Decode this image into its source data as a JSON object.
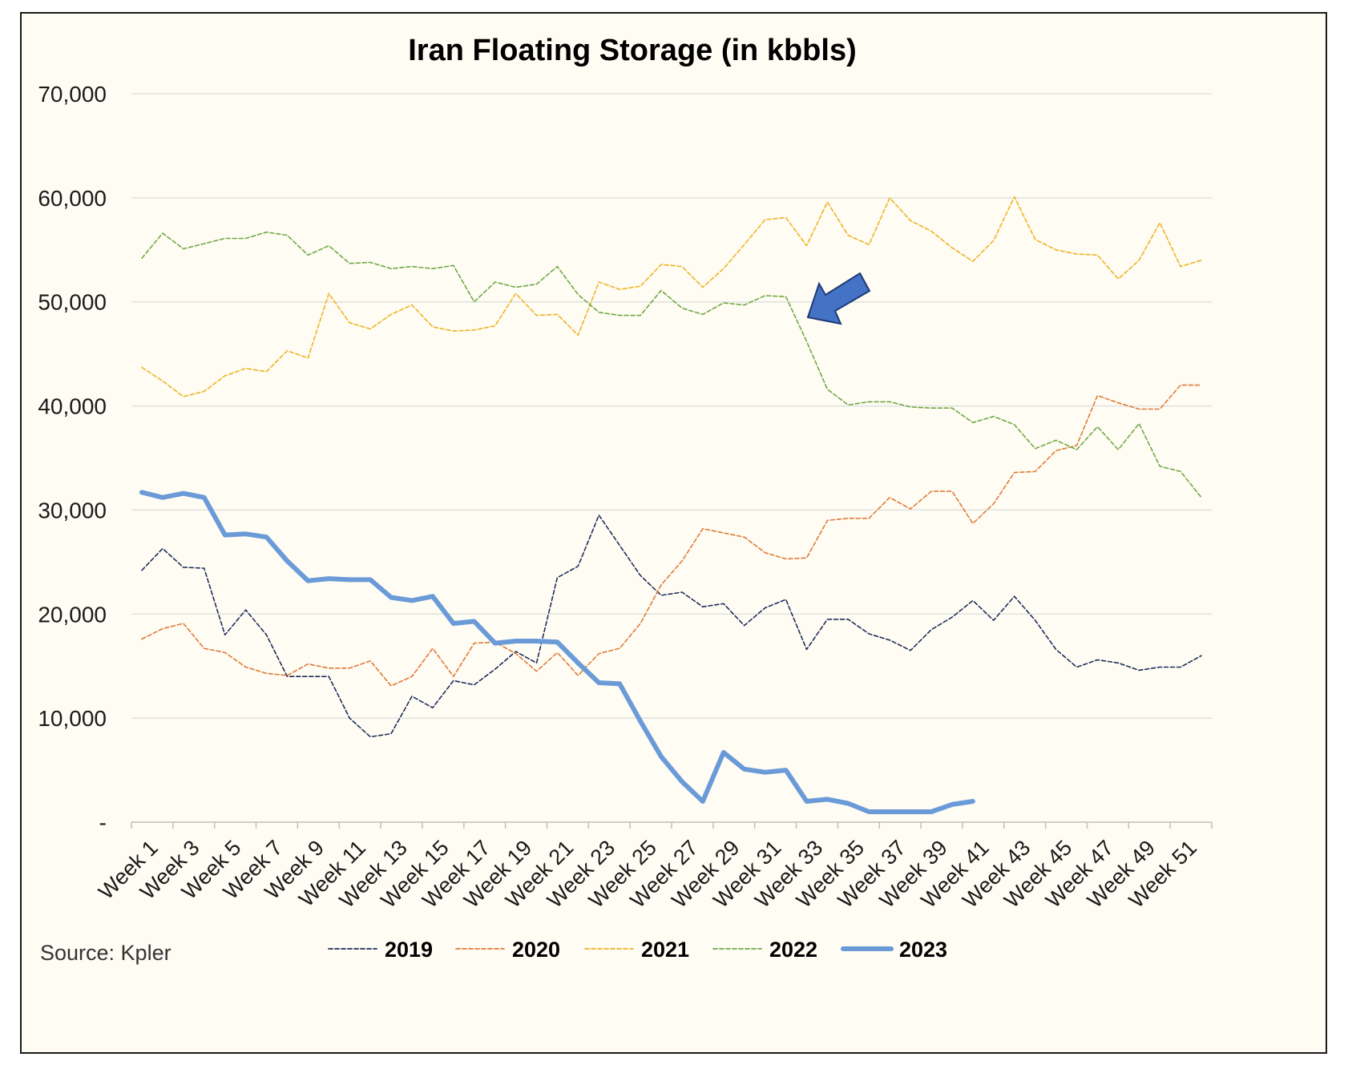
{
  "chart_data": {
    "type": "line",
    "title": "Iran Floating Storage (in kbbls)",
    "source": "Source: Kpler",
    "xlabel": "",
    "ylabel": "",
    "ylim": [
      0,
      70000
    ],
    "yticks": [
      {
        "value": 0,
        "label": "-"
      },
      {
        "value": 10000,
        "label": "10,000"
      },
      {
        "value": 20000,
        "label": "20,000"
      },
      {
        "value": 30000,
        "label": "30,000"
      },
      {
        "value": 40000,
        "label": "40,000"
      },
      {
        "value": 50000,
        "label": "50,000"
      },
      {
        "value": 60000,
        "label": "60,000"
      },
      {
        "value": 70000,
        "label": "70,000"
      }
    ],
    "x_tick_labels": [
      "Week 1",
      "Week 3",
      "Week 5",
      "Week 7",
      "Week 9",
      "Week 11",
      "Week 13",
      "Week 15",
      "Week 17",
      "Week 19",
      "Week 21",
      "Week 23",
      "Week 25",
      "Week 27",
      "Week 29",
      "Week 31",
      "Week 33",
      "Week 35",
      "Week 37",
      "Week 39",
      "Week 41",
      "Week 43",
      "Week 45",
      "Week 47",
      "Week 49",
      "Week 51"
    ],
    "num_weeks": 52,
    "grid": true,
    "legend_position": "bottom",
    "annotation": {
      "type": "arrow",
      "points_to": "2022 drop at Week 32",
      "color": "#4472c4"
    },
    "series": [
      {
        "name": "2019",
        "color": "#1f2d5c",
        "style": "dashed",
        "width": 1.6,
        "values": [
          24200,
          26300,
          24500,
          24400,
          18000,
          20400,
          18000,
          14000,
          14000,
          14000,
          10000,
          8200,
          8500,
          12100,
          11000,
          13600,
          13200,
          14700,
          16400,
          15300,
          23500,
          24600,
          29500,
          26600,
          23700,
          21800,
          22100,
          20700,
          21000,
          18900,
          20600,
          21400,
          16600,
          19500,
          19500,
          18100,
          17500,
          16500,
          18500,
          19700,
          21300,
          19400,
          21700,
          19400,
          16600,
          14900,
          15600,
          15300,
          14600,
          14900,
          14900,
          16000
        ]
      },
      {
        "name": "2020",
        "color": "#e07b39",
        "style": "dashed",
        "width": 1.6,
        "values": [
          17600,
          18600,
          19100,
          16700,
          16300,
          14900,
          14300,
          14100,
          15200,
          14800,
          14800,
          15500,
          13100,
          14000,
          16700,
          14000,
          17200,
          17300,
          16200,
          14500,
          16300,
          14100,
          16200,
          16700,
          19100,
          22800,
          25100,
          28200,
          27800,
          27400,
          25900,
          25300,
          25400,
          29000,
          29200,
          29200,
          31200,
          30100,
          31800,
          31800,
          28700,
          30600,
          33600,
          33700,
          35700,
          36200,
          41000,
          40300,
          39700,
          39700,
          42000,
          42000
        ]
      },
      {
        "name": "2021",
        "color": "#f0b323",
        "style": "dashed",
        "width": 1.6,
        "values": [
          43700,
          42400,
          40900,
          41400,
          42900,
          43600,
          43300,
          45300,
          44600,
          50800,
          48000,
          47400,
          48800,
          49700,
          47600,
          47200,
          47300,
          47700,
          50800,
          48700,
          48800,
          46800,
          51900,
          51200,
          51500,
          53600,
          53400,
          51400,
          53200,
          55500,
          57900,
          58100,
          55400,
          59600,
          56400,
          55500,
          60000,
          57800,
          56800,
          55200,
          53900,
          55900,
          60100,
          56000,
          55000,
          54600,
          54500,
          52200,
          54000,
          57600,
          53400,
          54000
        ]
      },
      {
        "name": "2022",
        "color": "#70a846",
        "style": "dashed",
        "width": 1.6,
        "values": [
          54200,
          56600,
          55100,
          55600,
          56100,
          56100,
          56700,
          56400,
          54500,
          55400,
          53700,
          53800,
          53200,
          53400,
          53200,
          53500,
          50000,
          51900,
          51400,
          51700,
          53400,
          50700,
          49000,
          48700,
          48700,
          51100,
          49400,
          48800,
          49900,
          49700,
          50600,
          50500,
          46200,
          41600,
          40100,
          40400,
          40400,
          39900,
          39800,
          39800,
          38400,
          39000,
          38200,
          35900,
          36700,
          35800,
          38000,
          35800,
          38300,
          34200,
          33700,
          31200
        ]
      },
      {
        "name": "2023",
        "color": "#6a9bd8",
        "style": "solid",
        "width": 6,
        "values": [
          31700,
          31200,
          31600,
          31200,
          27600,
          27700,
          27400,
          25100,
          23200,
          23400,
          23300,
          23300,
          21600,
          21300,
          21700,
          19100,
          19300,
          17200,
          17400,
          17400,
          17300,
          15300,
          13400,
          13300,
          9700,
          6300,
          3900,
          2000,
          6700,
          5100,
          4800,
          5000,
          2000,
          2200,
          1800,
          1000,
          1000,
          1000,
          1000,
          1700,
          2000
        ]
      }
    ]
  }
}
